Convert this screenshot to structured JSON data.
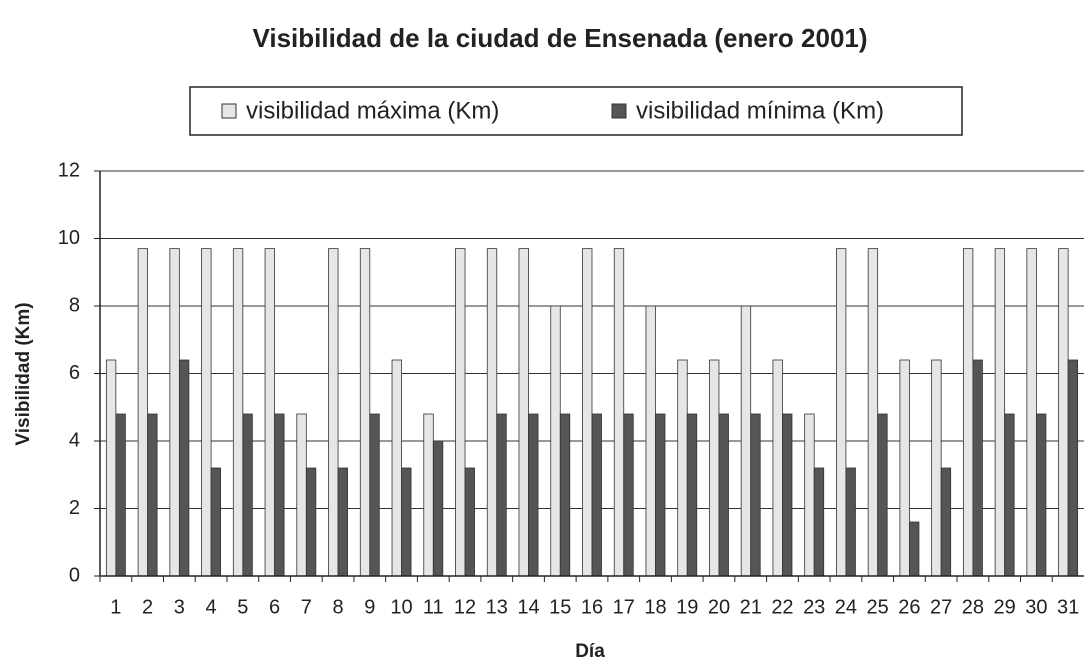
{
  "chart_data": {
    "type": "bar",
    "title": "Visibilidad de la ciudad de Ensenada (enero  2001)",
    "x_label": "Día",
    "y_label": "Visibilidad (Km)",
    "categories": [
      "1",
      "2",
      "3",
      "4",
      "5",
      "6",
      "7",
      "8",
      "9",
      "10",
      "11",
      "12",
      "13",
      "14",
      "15",
      "16",
      "17",
      "18",
      "19",
      "20",
      "21",
      "22",
      "23",
      "24",
      "25",
      "26",
      "27",
      "28",
      "29",
      "30",
      "31"
    ],
    "series": [
      {
        "name": "visibilidad máxima (Km)",
        "color": "#e6e6e6",
        "values": [
          6.4,
          9.7,
          9.7,
          9.7,
          9.7,
          9.7,
          4.8,
          9.7,
          9.7,
          6.4,
          4.8,
          9.7,
          9.7,
          9.7,
          8.0,
          9.7,
          9.7,
          8.0,
          6.4,
          6.4,
          8.0,
          6.4,
          4.8,
          9.7,
          9.7,
          6.4,
          6.4,
          9.7,
          9.7,
          9.7,
          9.7
        ]
      },
      {
        "name": "visibilidad mínima (Km)",
        "color": "#555555",
        "values": [
          4.8,
          4.8,
          6.4,
          3.2,
          4.8,
          4.8,
          3.2,
          3.2,
          4.8,
          3.2,
          4.0,
          3.2,
          4.8,
          4.8,
          4.8,
          4.8,
          4.8,
          4.8,
          4.8,
          4.8,
          4.8,
          4.8,
          3.2,
          3.2,
          4.8,
          1.6,
          3.2,
          6.4,
          4.8,
          4.8,
          6.4
        ]
      }
    ],
    "ylim": [
      0,
      12
    ],
    "yticks": [
      0,
      2,
      4,
      6,
      8,
      10,
      12
    ],
    "grid": true,
    "legend": "top"
  }
}
